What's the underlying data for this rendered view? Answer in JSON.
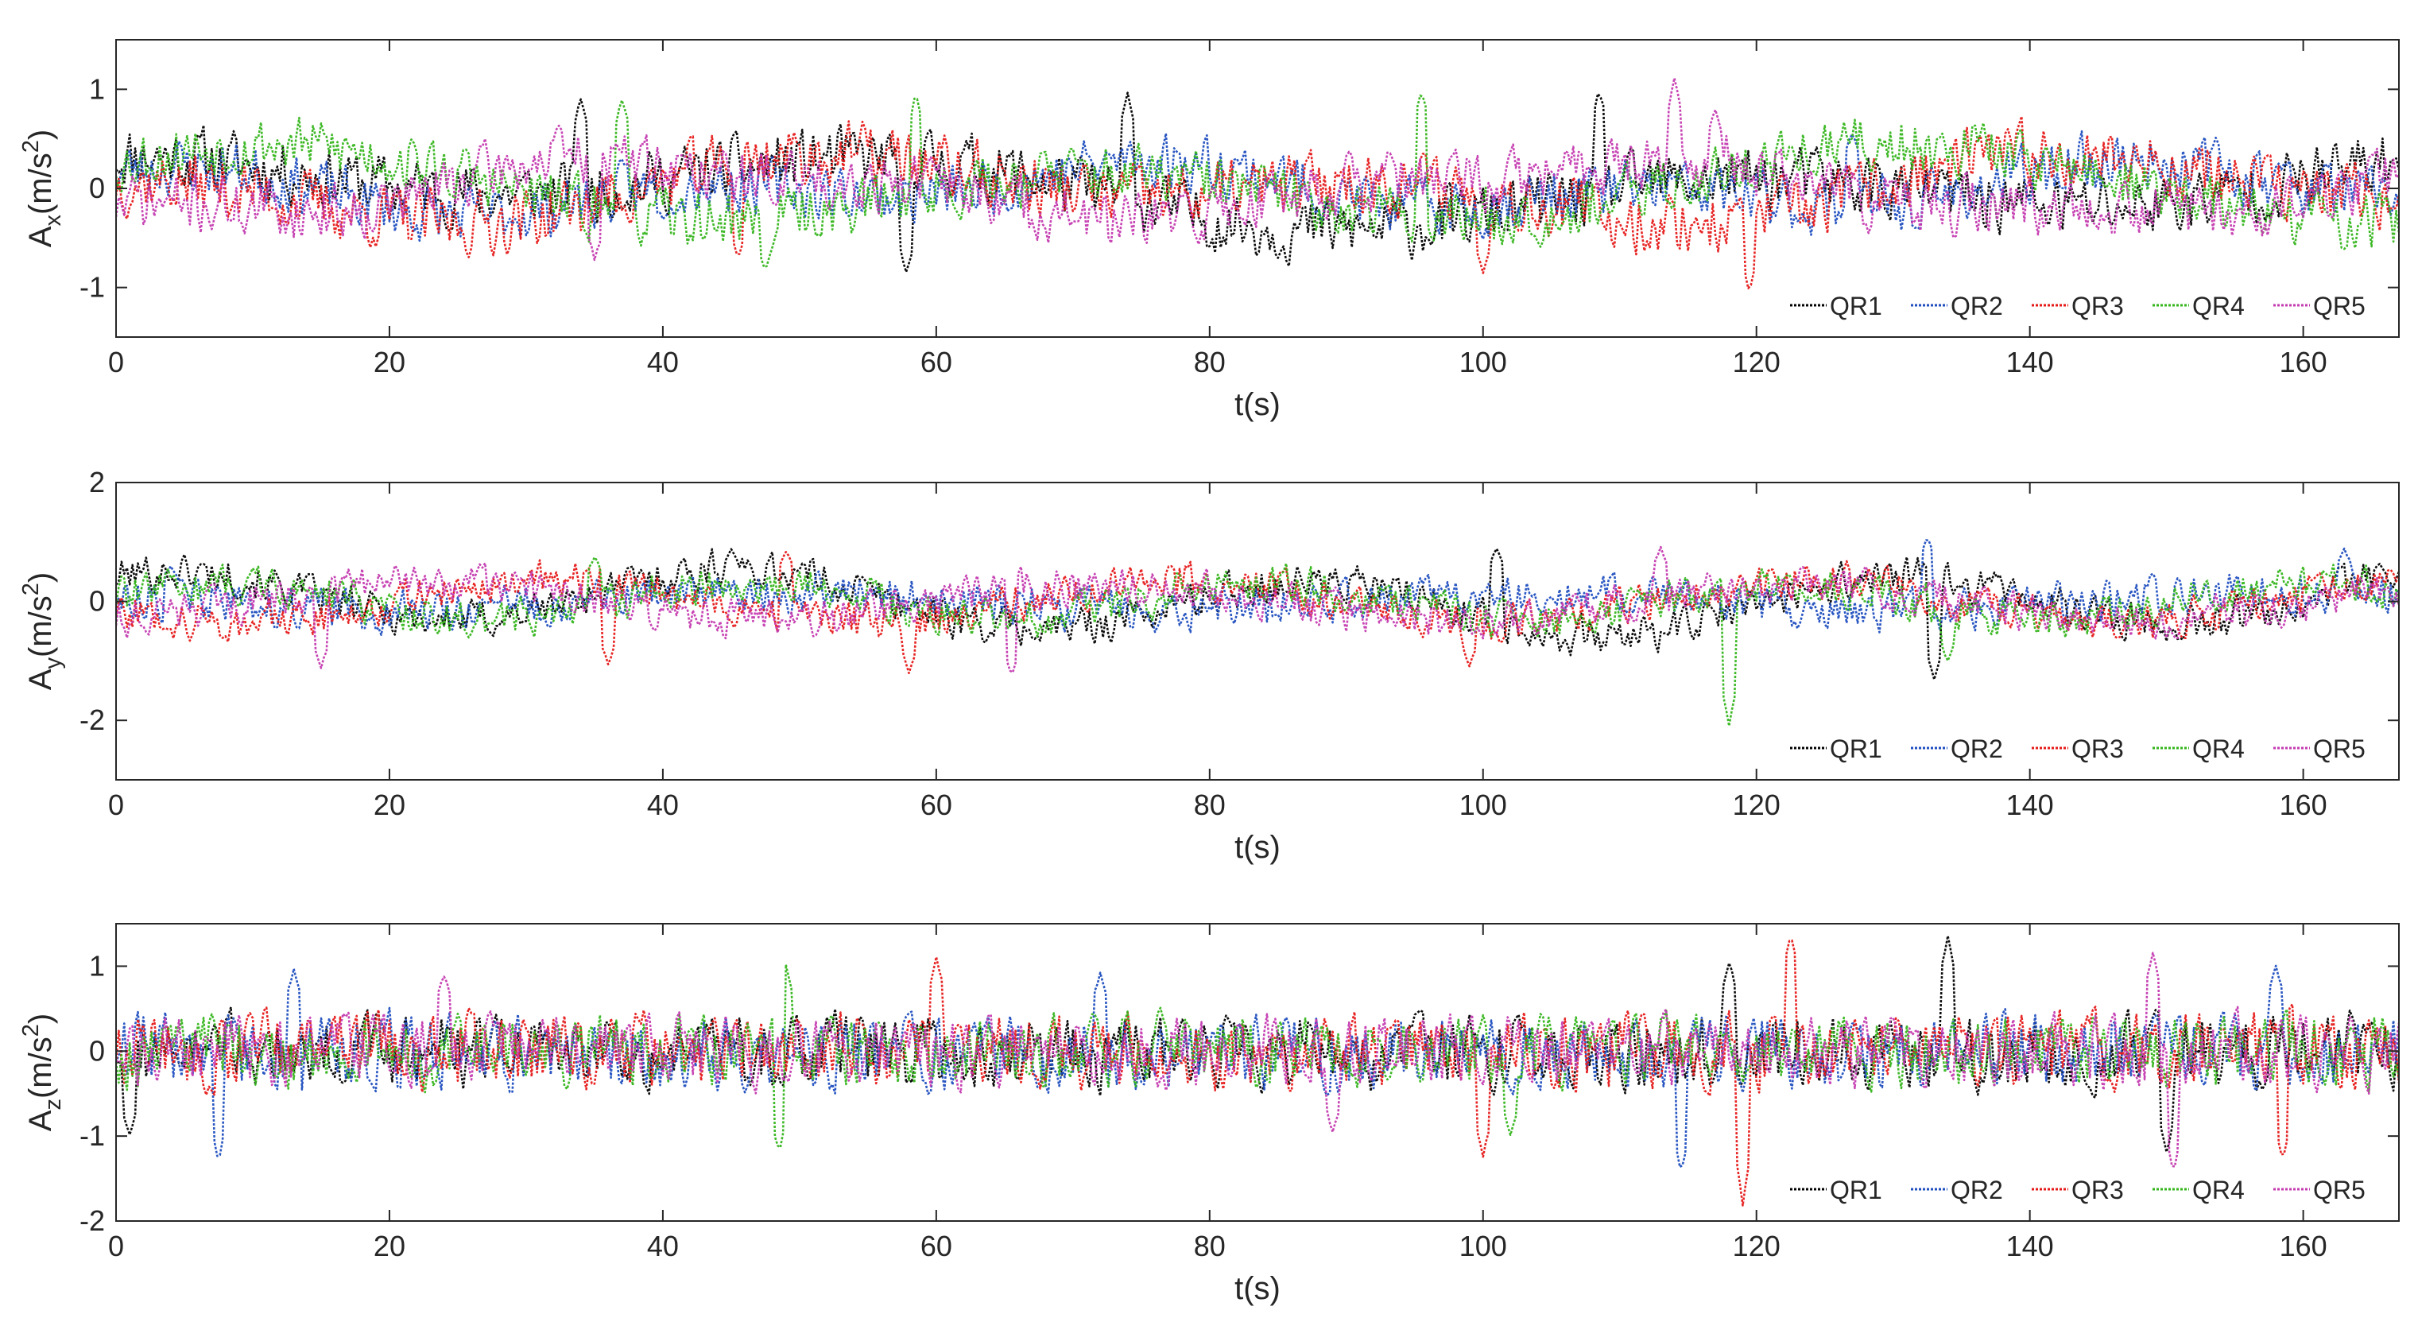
{
  "chart_data": [
    {
      "type": "line",
      "xlabel": "t(s)",
      "ylabel": {
        "base": "A",
        "sub": "x",
        "unit": "(m/s",
        "sup": "2",
        "close": ")"
      },
      "xlim": [
        0,
        167
      ],
      "ylim": [
        -1.5,
        1.5
      ],
      "xticks": [
        0,
        20,
        40,
        60,
        80,
        100,
        120,
        140,
        160
      ],
      "yticks": [
        -1,
        0,
        1
      ],
      "legend": {
        "position": "bottom-right"
      },
      "series": [
        {
          "name": "QR1",
          "color": "#000000",
          "seed": 11,
          "amp": 0.22,
          "waves": [
            [
              150,
              0.2,
              0.5
            ],
            [
              60,
              0.25,
              1.8
            ]
          ],
          "spikes": [
            [
              108.5,
              1.0
            ],
            [
              57.8,
              -0.85
            ],
            [
              74,
              0.95
            ],
            [
              34,
              0.9
            ]
          ]
        },
        {
          "name": "QR2",
          "color": "#1f4ebf",
          "seed": 23,
          "amp": 0.2,
          "waves": [
            [
              80,
              0.15,
              2.2
            ],
            [
              35,
              0.15,
              0.3
            ]
          ],
          "spikes": [
            [
              127,
              0.55
            ],
            [
              40,
              -0.3
            ]
          ]
        },
        {
          "name": "QR3",
          "color": "#e61919",
          "seed": 37,
          "amp": 0.22,
          "waves": [
            [
              90,
              0.2,
              3.6
            ],
            [
              45,
              0.2,
              0.9
            ]
          ],
          "spikes": [
            [
              119.5,
              -1.05
            ],
            [
              100,
              -0.85
            ],
            [
              45.5,
              -0.7
            ]
          ]
        },
        {
          "name": "QR4",
          "color": "#35b51c",
          "seed": 53,
          "amp": 0.2,
          "waves": [
            [
              60,
              0.3,
              0.4
            ],
            [
              120,
              0.15,
              1.1
            ]
          ],
          "spikes": [
            [
              58.5,
              0.95
            ],
            [
              95.5,
              1.0
            ],
            [
              37,
              0.9
            ],
            [
              47.5,
              -0.85
            ]
          ]
        },
        {
          "name": "QR5",
          "color": "#c43ab0",
          "seed": 71,
          "amp": 0.2,
          "waves": [
            [
              70,
              0.25,
              4.3
            ],
            [
              28,
              0.1,
              0.7
            ]
          ],
          "spikes": [
            [
              114,
              1.1
            ],
            [
              117,
              0.8
            ],
            [
              35,
              -0.7
            ]
          ]
        }
      ]
    },
    {
      "type": "line",
      "xlabel": "t(s)",
      "ylabel": {
        "base": "A",
        "sub": "y",
        "unit": "(m/s",
        "sup": "2",
        "close": ")"
      },
      "xlim": [
        0,
        167
      ],
      "ylim": [
        -3,
        2
      ],
      "xticks": [
        0,
        20,
        40,
        60,
        80,
        100,
        120,
        140,
        160
      ],
      "yticks": [
        -2,
        0,
        2
      ],
      "legend": {
        "position": "bottom-right"
      },
      "series": [
        {
          "name": "QR1",
          "color": "#000000",
          "seed": 101,
          "amp": 0.22,
          "waves": [
            [
              42,
              0.45,
              1.0
            ],
            [
              140,
              0.15,
              0.2
            ]
          ],
          "spikes": [
            [
              45,
              0.9
            ],
            [
              101,
              0.9
            ],
            [
              133,
              -1.3
            ]
          ]
        },
        {
          "name": "QR2",
          "color": "#1f4ebf",
          "seed": 113,
          "amp": 0.24,
          "waves": [
            [
              55,
              0.15,
              2.4
            ]
          ],
          "spikes": [
            [
              132.5,
              1.1
            ],
            [
              163,
              0.9
            ],
            [
              4,
              0.6
            ]
          ]
        },
        {
          "name": "QR3",
          "color": "#e61919",
          "seed": 127,
          "amp": 0.22,
          "waves": [
            [
              46,
              0.35,
              3.5
            ]
          ],
          "spikes": [
            [
              49,
              0.85
            ],
            [
              58,
              -1.2
            ],
            [
              99,
              -1.1
            ],
            [
              36,
              -1.05
            ]
          ]
        },
        {
          "name": "QR4",
          "color": "#35b51c",
          "seed": 139,
          "amp": 0.22,
          "waves": [
            [
              38,
              0.3,
              0.2
            ]
          ],
          "spikes": [
            [
              118,
              -2.1
            ],
            [
              35,
              0.75
            ],
            [
              134,
              -1.0
            ]
          ]
        },
        {
          "name": "QR5",
          "color": "#c43ab0",
          "seed": 151,
          "amp": 0.22,
          "waves": [
            [
              50,
              0.3,
              5.0
            ]
          ],
          "spikes": [
            [
              65.5,
              -1.25
            ],
            [
              15,
              -1.1
            ],
            [
              113,
              0.9
            ]
          ]
        }
      ]
    },
    {
      "type": "line",
      "xlabel": "t(s)",
      "ylabel": {
        "base": "A",
        "sub": "z",
        "unit": "(m/s",
        "sup": "2",
        "close": ")"
      },
      "xlim": [
        0,
        167
      ],
      "ylim": [
        -2,
        1.5
      ],
      "xticks": [
        0,
        20,
        40,
        60,
        80,
        100,
        120,
        140,
        160
      ],
      "yticks": [
        -2,
        -1,
        0,
        1
      ],
      "legend": {
        "position": "bottom-right"
      },
      "series": [
        {
          "name": "QR1",
          "color": "#000000",
          "seed": 211,
          "amp": 0.3,
          "waves": [],
          "spikes": [
            [
              134,
              1.35
            ],
            [
              150,
              -1.2
            ],
            [
              1,
              -1.0
            ],
            [
              118,
              1.05
            ]
          ]
        },
        {
          "name": "QR2",
          "color": "#1f4ebf",
          "seed": 223,
          "amp": 0.3,
          "waves": [],
          "spikes": [
            [
              7.5,
              -1.3
            ],
            [
              114.5,
              -1.45
            ],
            [
              13,
              0.95
            ],
            [
              72,
              0.9
            ],
            [
              158,
              1.0
            ]
          ]
        },
        {
          "name": "QR3",
          "color": "#e61919",
          "seed": 227,
          "amp": 0.3,
          "waves": [],
          "spikes": [
            [
              60,
              1.1
            ],
            [
              119,
              -1.8
            ],
            [
              122.5,
              1.4
            ],
            [
              100,
              -1.25
            ],
            [
              158.5,
              -1.3
            ]
          ]
        },
        {
          "name": "QR4",
          "color": "#35b51c",
          "seed": 229,
          "amp": 0.28,
          "waves": [],
          "spikes": [
            [
              49,
              1.0
            ],
            [
              48.5,
              -1.2
            ],
            [
              102,
              -1.0
            ]
          ]
        },
        {
          "name": "QR5",
          "color": "#c43ab0",
          "seed": 233,
          "amp": 0.28,
          "waves": [],
          "spikes": [
            [
              149,
              1.15
            ],
            [
              24,
              0.9
            ],
            [
              150.5,
              -1.45
            ],
            [
              89,
              -0.95
            ]
          ]
        }
      ]
    }
  ]
}
